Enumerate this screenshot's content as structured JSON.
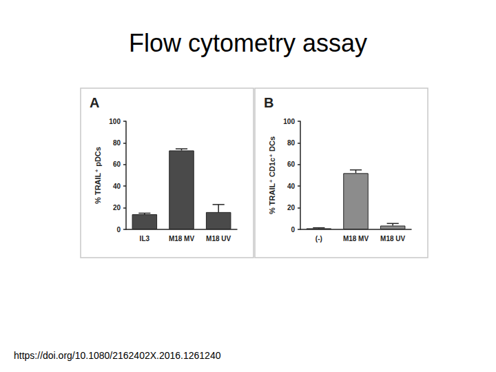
{
  "title": "Flow cytometry assay",
  "footer": "https://doi.org/10.1080/2162402X.2016.1261240",
  "chart_data": [
    {
      "type": "bar",
      "title": "A",
      "ylabel": "% TRAIL⁺ pDCs",
      "categories": [
        "IL3",
        "M18 MV",
        "M18 UV"
      ],
      "values": [
        14,
        73,
        16
      ],
      "errors": [
        1,
        1.5,
        7
      ],
      "color": "#4a4a4a",
      "ylim": [
        0,
        100
      ],
      "yticks": [
        0,
        20,
        40,
        60,
        80,
        100
      ],
      "grid": false
    },
    {
      "type": "bar",
      "title": "B",
      "ylabel": "% TRAIL⁺ CD1c⁺ DCs",
      "categories": [
        "(-)",
        "M18 MV",
        "M18 UV"
      ],
      "values": [
        1,
        52,
        3.5
      ],
      "errors": [
        0.5,
        3,
        2
      ],
      "color": "#8c8c8c",
      "ylim": [
        0,
        100
      ],
      "yticks": [
        0,
        20,
        40,
        60,
        80,
        100
      ],
      "grid": false
    }
  ]
}
